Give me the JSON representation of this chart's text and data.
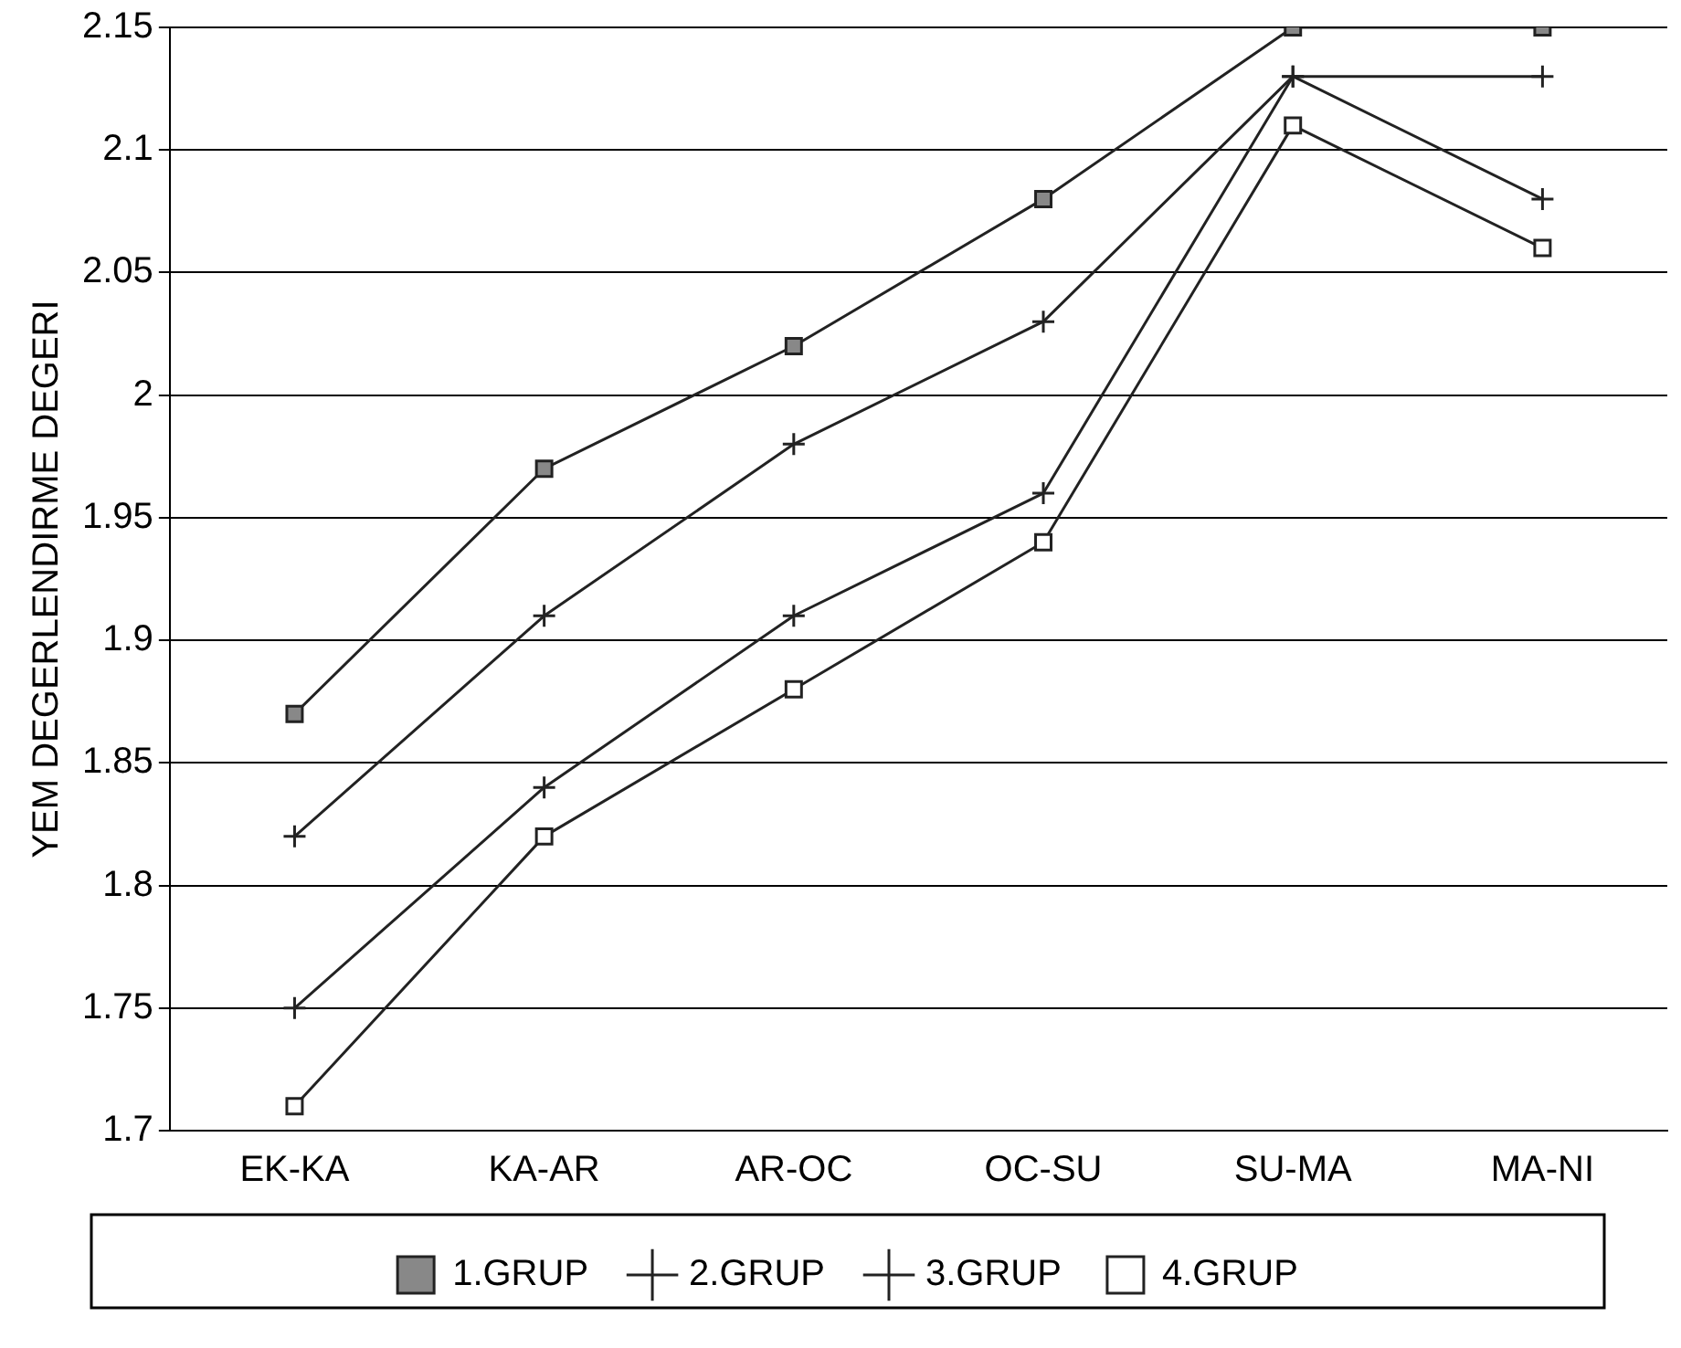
{
  "chart_data": {
    "type": "line",
    "ylabel": "YEM DEGERLENDIRME DEGERI",
    "categories": [
      "EK-KA",
      "KA-AR",
      "AR-OC",
      "OC-SU",
      "SU-MA",
      "MA-NI"
    ],
    "series": [
      {
        "name": "1.GRUP",
        "color": "#222222",
        "marker": "square",
        "values": [
          1.87,
          1.97,
          2.02,
          2.08,
          2.15,
          2.15
        ]
      },
      {
        "name": "2.GRUP",
        "color": "#222222",
        "marker": "cross",
        "values": [
          1.82,
          1.91,
          1.98,
          2.03,
          2.13,
          2.13
        ]
      },
      {
        "name": "3.GRUP",
        "color": "#222222",
        "marker": "cross",
        "values": [
          1.75,
          1.84,
          1.91,
          1.96,
          2.13,
          2.08
        ]
      },
      {
        "name": "4.GRUP",
        "color": "#222222",
        "marker": "square",
        "values": [
          1.71,
          1.82,
          1.88,
          1.94,
          2.11,
          2.06
        ]
      }
    ],
    "ylim": [
      1.7,
      2.15
    ],
    "yticks": [
      1.7,
      1.75,
      1.8,
      1.85,
      1.9,
      1.95,
      2,
      2.05,
      2.1,
      2.15
    ],
    "grid": "y",
    "legend": "bottom",
    "line_style": "solid"
  }
}
